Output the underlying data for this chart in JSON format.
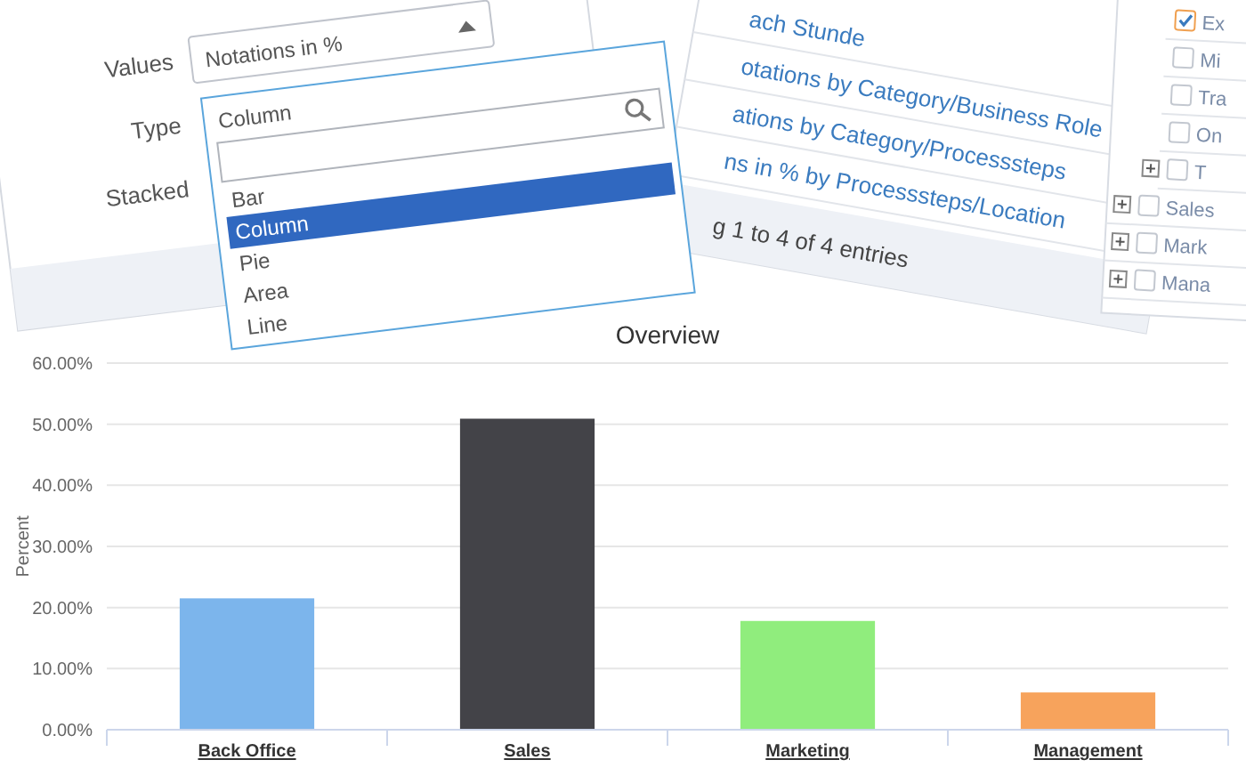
{
  "chart_data": {
    "type": "bar",
    "title": "Overview",
    "ylabel": "Percent",
    "categories": [
      "Back Office",
      "Sales",
      "Marketing",
      "Management"
    ],
    "values": [
      21.5,
      50.9,
      17.8,
      6.1
    ],
    "colors": [
      "#7cb5ec",
      "#434348",
      "#90ed7d",
      "#f7a35c"
    ],
    "ylim": [
      0,
      60
    ],
    "yticks": [
      {
        "value": 0,
        "label": "0.00%"
      },
      {
        "value": 10,
        "label": "10.00%"
      },
      {
        "value": 20,
        "label": "20.00%"
      },
      {
        "value": 30,
        "label": "30.00%"
      },
      {
        "value": 40,
        "label": "40.00%"
      },
      {
        "value": 50,
        "label": "50.00%"
      },
      {
        "value": 60,
        "label": "60.00%"
      }
    ],
    "grid": "y",
    "annotations": [
      "Values",
      "Notations in %",
      "Type",
      "Column",
      "Stacked",
      "Bar",
      "Column",
      "Pie",
      "Area",
      "Line",
      "ach Stunde",
      "otations by Category/Business Role",
      "ations by Category/Processsteps",
      "ns in % by Processsteps/Location",
      "g 1 to 4 of 4 entries",
      "Ex",
      "Mi",
      "Tra",
      "On",
      "T",
      "Sales",
      "Mark",
      "Mana"
    ]
  }
}
